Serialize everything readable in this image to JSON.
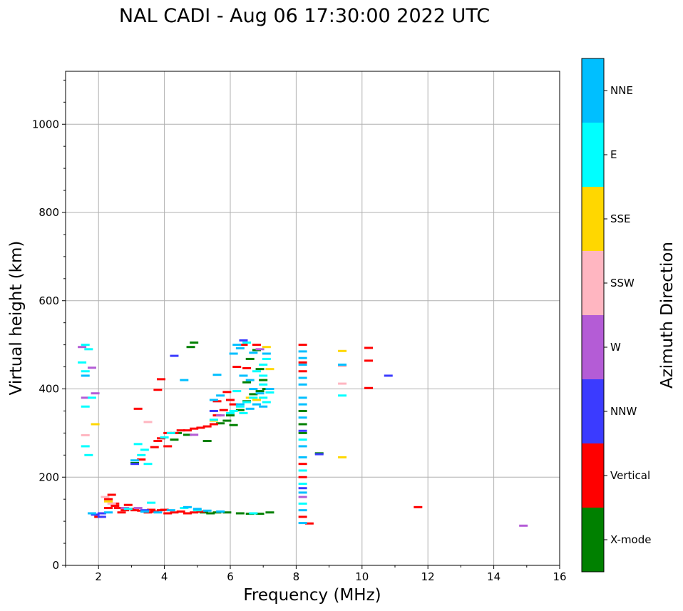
{
  "chart_data": {
    "type": "scatter",
    "title": "NAL CADI - Aug 06 17:30:00 2022 UTC",
    "xlabel": "Frequency (MHz)",
    "ylabel": "Virtual height (km)",
    "xlim": [
      1,
      16
    ],
    "ylim": [
      0,
      1120
    ],
    "xticks": [
      2,
      4,
      6,
      8,
      10,
      12,
      14,
      16
    ],
    "yticks": [
      0,
      200,
      400,
      600,
      800,
      1000
    ],
    "grid": true,
    "colorbar": {
      "label": "Azimuth Direction",
      "categories": [
        "X-mode",
        "Vertical",
        "NNW",
        "W",
        "SSW",
        "SSE",
        "E",
        "NNE"
      ],
      "colors": {
        "X-mode": "#008000",
        "Vertical": "#ff0000",
        "NNW": "#3b3bff",
        "W": "#b45cd6",
        "SSW": "#ffb6c1",
        "SSE": "#ffd700",
        "E": "#00ffff",
        "NNE": "#00bfff"
      }
    },
    "series": [
      {
        "name": "X-mode",
        "points": [
          [
            5.2,
            120
          ],
          [
            5.4,
            118
          ],
          [
            5.6,
            120
          ],
          [
            5.9,
            120
          ],
          [
            6.3,
            118
          ],
          [
            6.6,
            117
          ],
          [
            6.9,
            117
          ],
          [
            7.2,
            120
          ],
          [
            5.3,
            282
          ],
          [
            5.7,
            322
          ],
          [
            5.9,
            328
          ],
          [
            6.1,
            318
          ],
          [
            6.3,
            352
          ],
          [
            6.5,
            372
          ],
          [
            6.7,
            388
          ],
          [
            6.9,
            395
          ],
          [
            7.0,
            420
          ],
          [
            6.9,
            445
          ],
          [
            6.6,
            468
          ],
          [
            6.8,
            488
          ],
          [
            4.9,
            505
          ],
          [
            4.8,
            495
          ],
          [
            4.7,
            296
          ],
          [
            4.4,
            300
          ],
          [
            4.3,
            285
          ],
          [
            8.2,
            350
          ],
          [
            8.2,
            320
          ],
          [
            8.2,
            300
          ],
          [
            8.7,
            254
          ],
          [
            3.1,
            232
          ],
          [
            6.0,
            340
          ],
          [
            6.5,
            415
          ],
          [
            7.1,
            400
          ]
        ]
      },
      {
        "name": "Vertical",
        "points": [
          [
            2.0,
            110
          ],
          [
            2.3,
            130
          ],
          [
            2.5,
            135
          ],
          [
            2.6,
            130
          ],
          [
            2.8,
            125
          ],
          [
            3.0,
            128
          ],
          [
            3.1,
            125
          ],
          [
            3.3,
            124
          ],
          [
            3.5,
            120
          ],
          [
            3.7,
            122
          ],
          [
            3.9,
            125
          ],
          [
            4.1,
            118
          ],
          [
            4.3,
            120
          ],
          [
            4.5,
            122
          ],
          [
            4.7,
            118
          ],
          [
            4.9,
            120
          ],
          [
            5.1,
            122
          ],
          [
            2.4,
            160
          ],
          [
            2.3,
            150
          ],
          [
            2.5,
            140
          ],
          [
            2.7,
            120
          ],
          [
            3.3,
            240
          ],
          [
            3.7,
            268
          ],
          [
            3.8,
            282
          ],
          [
            3.9,
            288
          ],
          [
            4.1,
            300
          ],
          [
            4.3,
            300
          ],
          [
            4.5,
            306
          ],
          [
            4.7,
            306
          ],
          [
            4.9,
            310
          ],
          [
            5.1,
            312
          ],
          [
            5.3,
            315
          ],
          [
            5.5,
            320
          ],
          [
            5.6,
            340
          ],
          [
            5.8,
            352
          ],
          [
            6.0,
            375
          ],
          [
            6.1,
            365
          ],
          [
            5.6,
            372
          ],
          [
            6.8,
            500
          ],
          [
            6.4,
            500
          ],
          [
            6.2,
            450
          ],
          [
            8.2,
            500
          ],
          [
            8.2,
            460
          ],
          [
            8.2,
            440
          ],
          [
            8.2,
            230
          ],
          [
            8.2,
            200
          ],
          [
            8.2,
            110
          ],
          [
            8.4,
            95
          ],
          [
            10.2,
            493
          ],
          [
            10.2,
            464
          ],
          [
            10.2,
            402
          ],
          [
            11.7,
            132
          ],
          [
            3.2,
            355
          ],
          [
            3.8,
            398
          ],
          [
            3.9,
            422
          ],
          [
            4.1,
            270
          ],
          [
            5.9,
            393
          ],
          [
            6.5,
            447
          ],
          [
            2.9,
            137
          ],
          [
            3.6,
            126
          ],
          [
            4.0,
            126
          ]
        ]
      },
      {
        "name": "NNW",
        "points": [
          [
            1.9,
            115
          ],
          [
            2.1,
            118
          ],
          [
            3.1,
            230
          ],
          [
            4.3,
            475
          ],
          [
            8.2,
            305
          ],
          [
            8.2,
            175
          ],
          [
            8.7,
            252
          ],
          [
            10.8,
            430
          ],
          [
            2.1,
            110
          ],
          [
            3.4,
            125
          ],
          [
            5.5,
            350
          ],
          [
            6.4,
            510
          ]
        ]
      },
      {
        "name": "W",
        "points": [
          [
            1.5,
            495
          ],
          [
            1.8,
            448
          ],
          [
            1.9,
            390
          ],
          [
            2.8,
            130
          ],
          [
            4.9,
            296
          ],
          [
            6.9,
            490
          ],
          [
            8.2,
            155
          ],
          [
            14.9,
            90
          ],
          [
            5.7,
            340
          ],
          [
            1.6,
            380
          ],
          [
            3.2,
            130
          ]
        ]
      },
      {
        "name": "SSW",
        "points": [
          [
            1.6,
            295
          ],
          [
            2.4,
            140
          ],
          [
            9.4,
            452
          ],
          [
            9.4,
            412
          ],
          [
            3.5,
            325
          ],
          [
            2.2,
            155
          ]
        ]
      },
      {
        "name": "SSE",
        "points": [
          [
            7.1,
            495
          ],
          [
            6.8,
            375
          ],
          [
            6.6,
            380
          ],
          [
            9.4,
            486
          ],
          [
            9.4,
            245
          ],
          [
            1.9,
            320
          ],
          [
            5.5,
            328
          ],
          [
            7.2,
            445
          ],
          [
            2.3,
            145
          ]
        ]
      },
      {
        "name": "E",
        "points": [
          [
            1.6,
            500
          ],
          [
            1.7,
            490
          ],
          [
            1.5,
            460
          ],
          [
            1.6,
            440
          ],
          [
            1.8,
            380
          ],
          [
            1.6,
            360
          ],
          [
            1.6,
            270
          ],
          [
            1.7,
            250
          ],
          [
            3.2,
            275
          ],
          [
            3.4,
            262
          ],
          [
            3.3,
            250
          ],
          [
            3.5,
            230
          ],
          [
            4.0,
            290
          ],
          [
            4.2,
            300
          ],
          [
            5.5,
            330
          ],
          [
            6.0,
            345
          ],
          [
            6.3,
            360
          ],
          [
            6.5,
            370
          ],
          [
            6.7,
            380
          ],
          [
            7.0,
            380
          ],
          [
            7.1,
            370
          ],
          [
            7.2,
            392
          ],
          [
            7.0,
            410
          ],
          [
            7.0,
            430
          ],
          [
            6.8,
            440
          ],
          [
            7.0,
            455
          ],
          [
            7.1,
            468
          ],
          [
            6.5,
            505
          ],
          [
            6.2,
            395
          ],
          [
            6.4,
            345
          ],
          [
            8.2,
            285
          ],
          [
            8.2,
            215
          ],
          [
            8.2,
            185
          ],
          [
            8.2,
            140
          ],
          [
            9.4,
            385
          ],
          [
            4.6,
            130
          ],
          [
            5.0,
            125
          ],
          [
            6.1,
            350
          ],
          [
            6.7,
            118
          ],
          [
            3.6,
            142
          ],
          [
            2.9,
            128
          ]
        ]
      },
      {
        "name": "NNE",
        "points": [
          [
            1.6,
            430
          ],
          [
            6.1,
            480
          ],
          [
            6.3,
            492
          ],
          [
            6.7,
            482
          ],
          [
            7.1,
            480
          ],
          [
            6.4,
            430
          ],
          [
            6.6,
            420
          ],
          [
            6.7,
            400
          ],
          [
            6.9,
            390
          ],
          [
            7.0,
            360
          ],
          [
            6.3,
            365
          ],
          [
            6.6,
            355
          ],
          [
            6.8,
            365
          ],
          [
            5.7,
            385
          ],
          [
            5.5,
            375
          ],
          [
            4.6,
            420
          ],
          [
            5.6,
            432
          ],
          [
            3.1,
            238
          ],
          [
            3.4,
            122
          ],
          [
            3.8,
            120
          ],
          [
            4.2,
            125
          ],
          [
            4.7,
            132
          ],
          [
            5.0,
            128
          ],
          [
            5.3,
            124
          ],
          [
            5.7,
            122
          ],
          [
            8.2,
            485
          ],
          [
            8.2,
            470
          ],
          [
            8.2,
            455
          ],
          [
            8.2,
            425
          ],
          [
            8.2,
            410
          ],
          [
            8.2,
            380
          ],
          [
            8.2,
            365
          ],
          [
            8.2,
            335
          ],
          [
            8.2,
            270
          ],
          [
            8.2,
            245
          ],
          [
            8.2,
            165
          ],
          [
            8.2,
            125
          ],
          [
            8.2,
            96
          ],
          [
            9.4,
            455
          ],
          [
            2.3,
            120
          ],
          [
            1.8,
            118
          ],
          [
            6.2,
            500
          ],
          [
            7.2,
            400
          ]
        ]
      }
    ]
  }
}
